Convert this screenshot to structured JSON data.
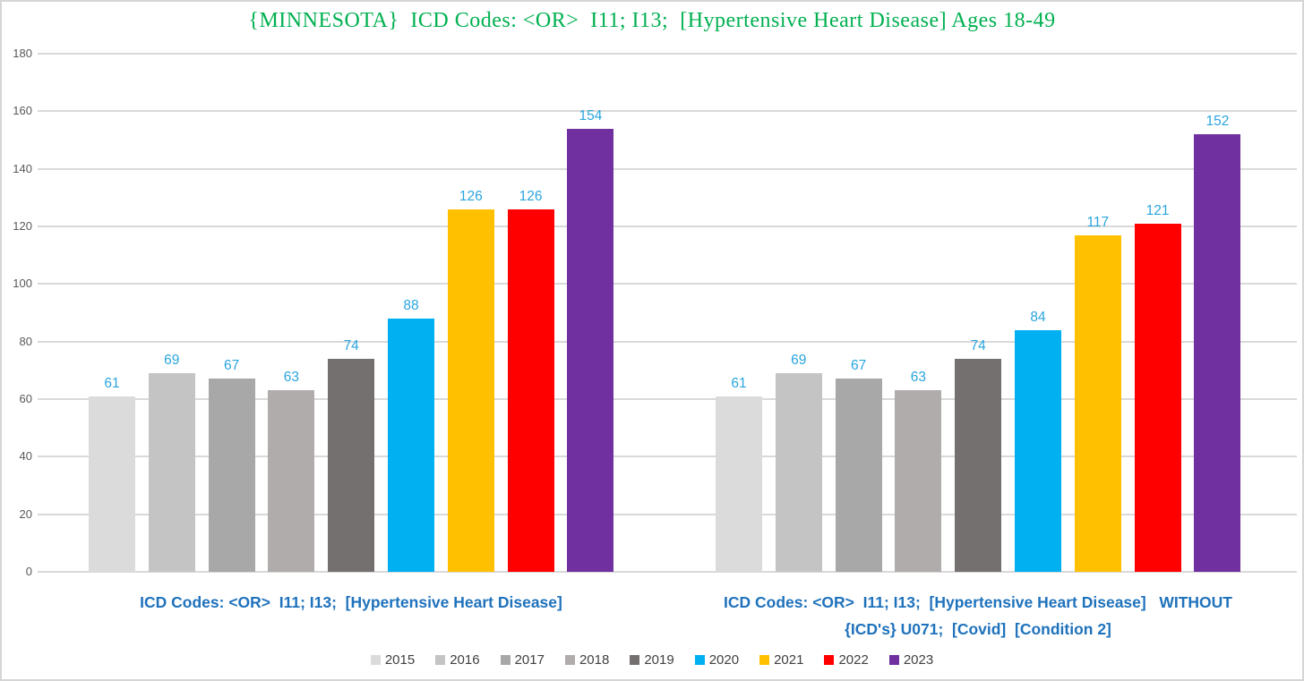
{
  "chart_data": {
    "type": "bar",
    "title": "{MINNESOTA}  ICD Codes: <OR>  I11; I13;  [Hypertensive Heart Disease] Ages 18-49",
    "xlabel": "",
    "ylabel": "",
    "ylim": [
      0,
      180
    ],
    "yticks": [
      0,
      20,
      40,
      60,
      80,
      100,
      120,
      140,
      160,
      180
    ],
    "grid": true,
    "legend_position": "bottom",
    "categories": [
      {
        "lines": [
          "ICD Codes: <OR>  I11; I13;  [Hypertensive Heart Disease]"
        ]
      },
      {
        "lines": [
          "ICD Codes: <OR>  I11; I13;  [Hypertensive Heart Disease]   WITHOUT",
          "{ICD's} U071;  [Covid]  [Condition 2]"
        ]
      }
    ],
    "series": [
      {
        "name": "2015",
        "color": "#DBDBDB",
        "values": [
          61,
          61
        ]
      },
      {
        "name": "2016",
        "color": "#C4C4C4",
        "values": [
          69,
          69
        ]
      },
      {
        "name": "2017",
        "color": "#A8A8A8",
        "values": [
          67,
          67
        ]
      },
      {
        "name": "2018",
        "color": "#B0ACAC",
        "values": [
          63,
          63
        ]
      },
      {
        "name": "2019",
        "color": "#757070",
        "values": [
          74,
          74
        ]
      },
      {
        "name": "2020",
        "color": "#00B0F0",
        "values": [
          88,
          84
        ]
      },
      {
        "name": "2021",
        "color": "#FFC000",
        "values": [
          126,
          117
        ]
      },
      {
        "name": "2022",
        "color": "#FF0000",
        "values": [
          126,
          121
        ]
      },
      {
        "name": "2023",
        "color": "#7030A0",
        "values": [
          154,
          152
        ]
      }
    ],
    "colors": {
      "title": "#00B050",
      "data_label": "#2AA5DE",
      "category_label": "#1F72BC",
      "axis_label": "#595959",
      "gridline": "#D9D9D9",
      "legend_text": "#404040",
      "background": "#FFFFFF",
      "border": "#D5D5D5"
    }
  }
}
